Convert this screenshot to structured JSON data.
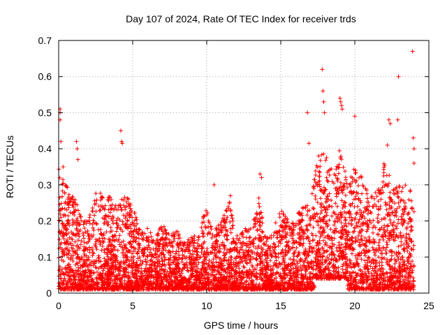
{
  "chart_data": {
    "type": "scatter",
    "title": "Day 107 of 2024, Rate Of TEC Index for receiver trds",
    "xlabel": "GPS time / hours",
    "ylabel": "ROTI / TECUs",
    "xlim": [
      0,
      25
    ],
    "ylim": [
      0,
      0.7
    ],
    "xticks": [
      0,
      5,
      10,
      15,
      20,
      25
    ],
    "xtick_labels": [
      "0",
      "5",
      "10",
      "15",
      "20",
      "25"
    ],
    "yticks": [
      0,
      0.1,
      0.2,
      0.3,
      0.4,
      0.5,
      0.6,
      0.7
    ],
    "ytick_labels": [
      "0",
      "0.1",
      "0.2",
      "0.3",
      "0.4",
      "0.5",
      "0.6",
      "0.7"
    ],
    "grid": true,
    "legend": "none",
    "marker": "plus",
    "marker_color": "#ff0000",
    "envelope_description": "dense cloud of points over 0-24 h; upper envelope values (hour, ROTI)",
    "envelope": [
      [
        0.0,
        0.35
      ],
      [
        0.5,
        0.3
      ],
      [
        1.0,
        0.27
      ],
      [
        1.5,
        0.22
      ],
      [
        2.0,
        0.2
      ],
      [
        2.5,
        0.29
      ],
      [
        3.0,
        0.27
      ],
      [
        3.5,
        0.27
      ],
      [
        4.0,
        0.24
      ],
      [
        4.5,
        0.28
      ],
      [
        5.0,
        0.24
      ],
      [
        5.5,
        0.18
      ],
      [
        6.0,
        0.18
      ],
      [
        6.5,
        0.15
      ],
      [
        7.0,
        0.2
      ],
      [
        7.5,
        0.16
      ],
      [
        8.0,
        0.18
      ],
      [
        8.5,
        0.14
      ],
      [
        9.0,
        0.16
      ],
      [
        9.5,
        0.16
      ],
      [
        10.0,
        0.26
      ],
      [
        10.5,
        0.18
      ],
      [
        11.0,
        0.2
      ],
      [
        11.5,
        0.26
      ],
      [
        12.0,
        0.16
      ],
      [
        12.5,
        0.18
      ],
      [
        13.0,
        0.18
      ],
      [
        13.5,
        0.27
      ],
      [
        14.0,
        0.15
      ],
      [
        14.5,
        0.18
      ],
      [
        15.0,
        0.24
      ],
      [
        15.5,
        0.2
      ],
      [
        16.0,
        0.22
      ],
      [
        16.5,
        0.24
      ],
      [
        17.0,
        0.25
      ],
      [
        17.5,
        0.38
      ],
      [
        18.0,
        0.4
      ],
      [
        18.5,
        0.34
      ],
      [
        19.0,
        0.42
      ],
      [
        19.5,
        0.3
      ],
      [
        20.0,
        0.35
      ],
      [
        20.5,
        0.32
      ],
      [
        21.0,
        0.28
      ],
      [
        21.5,
        0.28
      ],
      [
        22.0,
        0.38
      ],
      [
        22.5,
        0.3
      ],
      [
        23.0,
        0.3
      ],
      [
        23.5,
        0.3
      ],
      [
        24.0,
        0.28
      ]
    ],
    "outliers": [
      [
        0.1,
        0.51
      ],
      [
        0.1,
        0.5
      ],
      [
        0.1,
        0.48
      ],
      [
        0.15,
        0.42
      ],
      [
        0.3,
        0.35
      ],
      [
        1.2,
        0.42
      ],
      [
        1.25,
        0.4
      ],
      [
        1.3,
        0.37
      ],
      [
        4.2,
        0.45
      ],
      [
        4.25,
        0.42
      ],
      [
        4.3,
        0.415
      ],
      [
        10.5,
        0.3
      ],
      [
        11.6,
        0.27
      ],
      [
        13.6,
        0.33
      ],
      [
        13.7,
        0.32
      ],
      [
        16.8,
        0.5
      ],
      [
        16.9,
        0.415
      ],
      [
        17.8,
        0.62
      ],
      [
        17.85,
        0.56
      ],
      [
        17.9,
        0.53
      ],
      [
        17.95,
        0.5
      ],
      [
        19.0,
        0.54
      ],
      [
        19.05,
        0.53
      ],
      [
        19.1,
        0.52
      ],
      [
        19.15,
        0.51
      ],
      [
        20.0,
        0.49
      ],
      [
        22.3,
        0.48
      ],
      [
        22.4,
        0.47
      ],
      [
        22.2,
        0.41
      ],
      [
        22.9,
        0.48
      ],
      [
        22.95,
        0.6
      ],
      [
        23.9,
        0.67
      ],
      [
        23.95,
        0.43
      ],
      [
        24.0,
        0.4
      ],
      [
        24.0,
        0.36
      ]
    ]
  }
}
